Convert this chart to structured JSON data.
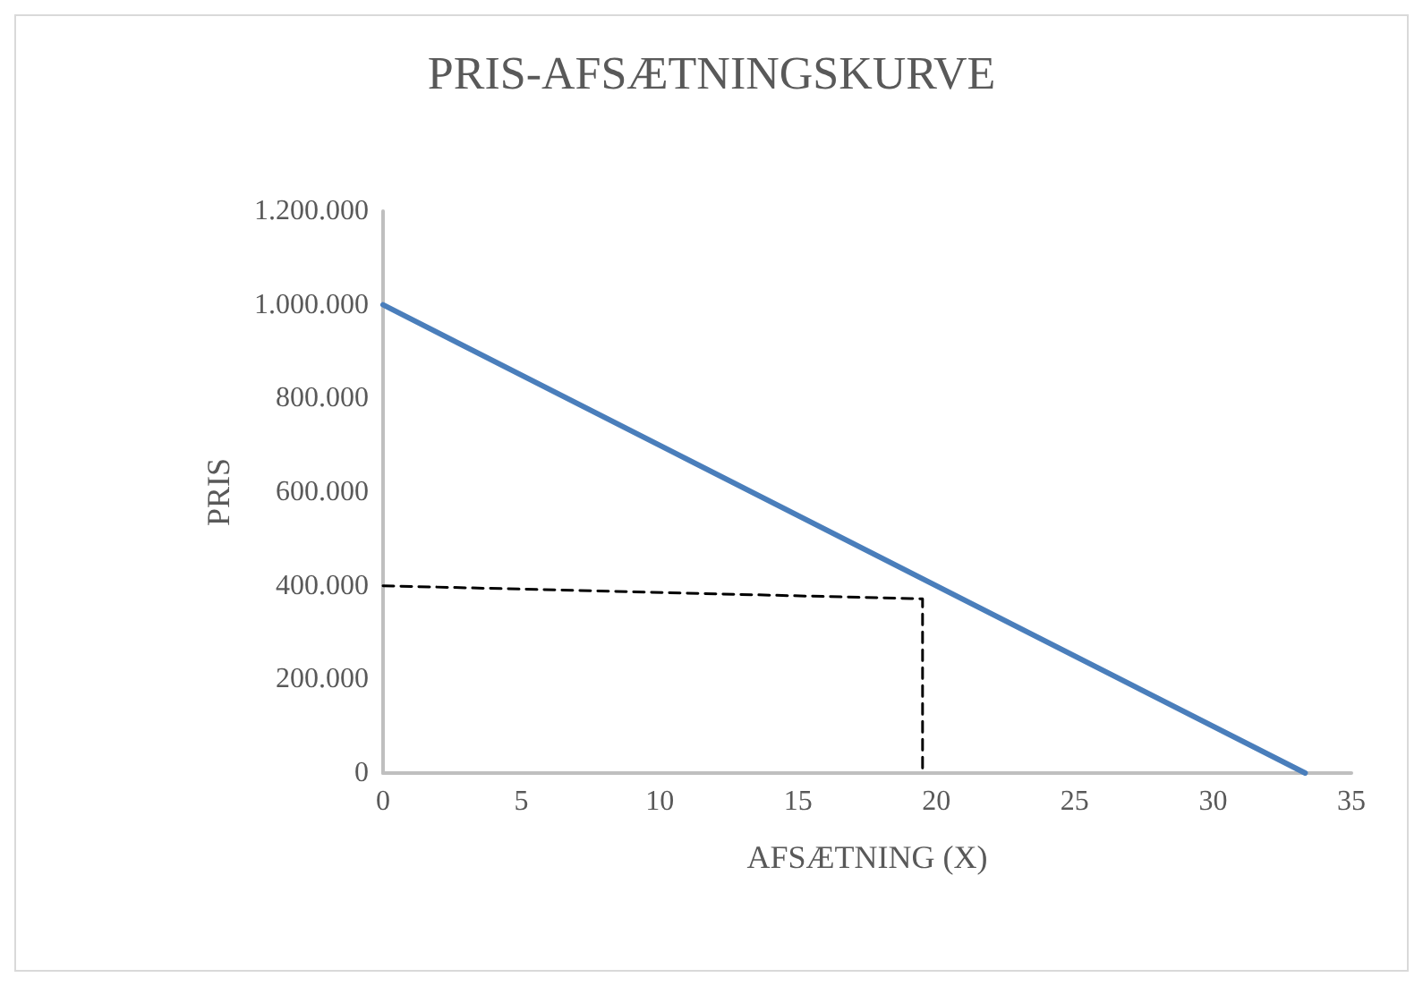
{
  "chart_data": {
    "type": "line",
    "title": "PRIS-AFSÆTNINGSKURVE",
    "xlabel": "AFSÆTNING (X)",
    "ylabel": "PRIS",
    "series": [
      {
        "color": "#4a7ebb",
        "x": [
          0,
          33.33
        ],
        "values": [
          1000000,
          0
        ]
      },
      {
        "color": "#000000",
        "x": [
          0,
          19.5,
          19.5
        ],
        "values": [
          400000,
          372000,
          0
        ],
        "line_style": "dashed"
      }
    ],
    "xlim": [
      0,
      35
    ],
    "xticks": [
      0,
      5,
      10,
      15,
      20,
      25,
      30,
      35
    ],
    "ylim": [
      0,
      1200000
    ],
    "yticks": [
      0,
      {
        "value": 200000,
        "label": "200.000"
      },
      {
        "value": 400000,
        "label": "400.000"
      },
      {
        "value": 600000,
        "label": "600.000"
      },
      {
        "value": 800000,
        "label": "800.000"
      },
      {
        "value": 1000000,
        "label": "1.000.000"
      },
      {
        "value": 1200000,
        "label": "1.200.000"
      }
    ],
    "grid": false,
    "marker": "none",
    "line_style": "solid"
  }
}
